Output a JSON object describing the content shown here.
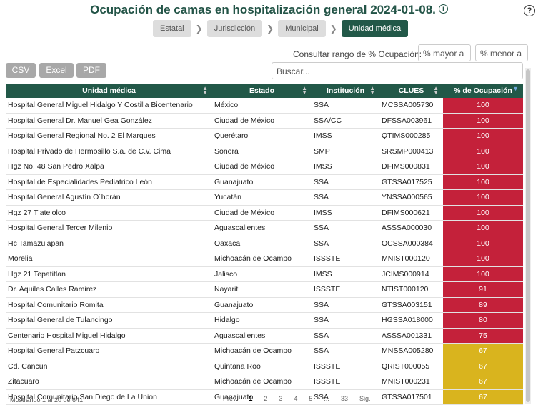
{
  "header": {
    "title": "Ocupación de camas en hospitalización general 2024-01-08.",
    "info_icon": "i",
    "help_icon": "?"
  },
  "breadcrumb": [
    "Estatal",
    "Jurisdicción",
    "Municipal",
    "Unidad médica"
  ],
  "filter": {
    "label": "Consultar rango de % Ocupación:",
    "min_placeholder": "% mayor a",
    "max_placeholder": "% menor a"
  },
  "export_buttons": [
    "CSV",
    "Excel",
    "PDF"
  ],
  "search_placeholder": "Buscar...",
  "table": {
    "columns": [
      "Unidad médica",
      "Estado",
      "Institución",
      "CLUES",
      "% de Ocupación"
    ],
    "rows": [
      [
        "Hospital General Miguel Hidalgo Y Costilla Bicentenario",
        "México",
        "SSA",
        "MCSSA005730",
        100
      ],
      [
        "Hospital General Dr. Manuel Gea González",
        "Ciudad de México",
        "SSA/CC",
        "DFSSA003961",
        100
      ],
      [
        "Hospital General Regional No. 2 El Marques",
        "Querétaro",
        "IMSS",
        "QTIMS000285",
        100
      ],
      [
        "Hospital Privado de Hermosillo S.a. de C.v. Cima",
        "Sonora",
        "SMP",
        "SRSMP000413",
        100
      ],
      [
        "Hgz No. 48 San Pedro Xalpa",
        "Ciudad de México",
        "IMSS",
        "DFIMS000831",
        100
      ],
      [
        "Hospital de Especialidades Pediatrico León",
        "Guanajuato",
        "SSA",
        "GTSSA017525",
        100
      ],
      [
        "Hospital General Agustín O´horán",
        "Yucatán",
        "SSA",
        "YNSSA000565",
        100
      ],
      [
        "Hgz 27 Tlatelolco",
        "Ciudad de México",
        "IMSS",
        "DFIMS000621",
        100
      ],
      [
        "Hospital General Tercer Milenio",
        "Aguascalientes",
        "SSA",
        "ASSSA000030",
        100
      ],
      [
        "Hc Tamazulapan",
        "Oaxaca",
        "SSA",
        "OCSSA000384",
        100
      ],
      [
        "Morelia",
        "Michoacán de Ocampo",
        "ISSSTE",
        "MNIST000120",
        100
      ],
      [
        "Hgz 21 Tepatitlan",
        "Jalisco",
        "IMSS",
        "JCIMS000914",
        100
      ],
      [
        "Dr. Aquiles Calles Ramirez",
        "Nayarit",
        "ISSSTE",
        "NTIST000120",
        91
      ],
      [
        "Hospital Comunitario Romita",
        "Guanajuato",
        "SSA",
        "GTSSA003151",
        89
      ],
      [
        "Hospital General de Tulancingo",
        "Hidalgo",
        "SSA",
        "HGSSA018000",
        80
      ],
      [
        "Centenario Hospital Miguel Hidalgo",
        "Aguascalientes",
        "SSA",
        "ASSSA001331",
        75
      ],
      [
        "Hospital General Patzcuaro",
        "Michoacán de Ocampo",
        "SSA",
        "MNSSA005280",
        67
      ],
      [
        "Cd. Cancun",
        "Quintana Roo",
        "ISSSTE",
        "QRIST000055",
        67
      ],
      [
        "Zitacuaro",
        "Michoacán de Ocampo",
        "ISSSTE",
        "MNIST000231",
        67
      ],
      [
        "Hospital Comunitario San Diego de La Union",
        "Guanajuato",
        "SSA",
        "GTSSA017501",
        67
      ]
    ],
    "occupancy_colors": [
      "#c4213a",
      "#c4213a",
      "#c4213a",
      "#c4213a",
      "#c4213a",
      "#c4213a",
      "#c4213a",
      "#c4213a",
      "#c4213a",
      "#c4213a",
      "#c4213a",
      "#c4213a",
      "#c4213a",
      "#c4213a",
      "#c4213a",
      "#c4213a",
      "#d9b41e",
      "#d9b41e",
      "#d9b41e",
      "#d9b41e"
    ]
  },
  "footer": {
    "info": "Mostrando 1 al 20 de 641",
    "pagination": [
      "Prev.",
      "1",
      "2",
      "3",
      "4",
      "5",
      "...",
      "33",
      "Sig."
    ]
  }
}
